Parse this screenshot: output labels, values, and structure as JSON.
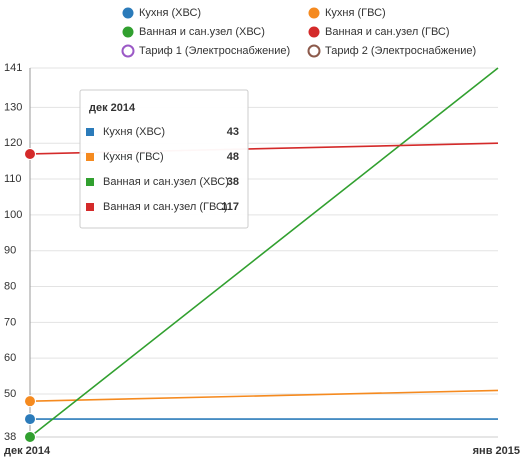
{
  "chart_data": {
    "type": "line",
    "categories": [
      "дек 2014",
      "янв 2015"
    ],
    "series": [
      {
        "name": "Кухня (ХВС)",
        "color": "#2b7bba",
        "values": [
          43,
          43
        ]
      },
      {
        "name": "Кухня (ГВС)",
        "color": "#f58a1f",
        "values": [
          48,
          51
        ]
      },
      {
        "name": "Ванная и сан.узел (ХВС)",
        "color": "#31a02f",
        "values": [
          38,
          141
        ]
      },
      {
        "name": "Ванная и сан.узел (ГВС)",
        "color": "#d42a2a",
        "values": [
          117,
          120
        ]
      },
      {
        "name": "Тариф 1 (Электроснабжение)",
        "color": "#9b59c6",
        "values": [
          null,
          null
        ]
      },
      {
        "name": "Тариф 2 (Электроснабжение)",
        "color": "#8c5a4b",
        "values": [
          null,
          null
        ]
      }
    ],
    "ylim": [
      38,
      141
    ],
    "yticks": [
      38,
      50,
      60,
      70,
      80,
      90,
      100,
      110,
      120,
      130,
      141
    ],
    "grid": true
  }
}
